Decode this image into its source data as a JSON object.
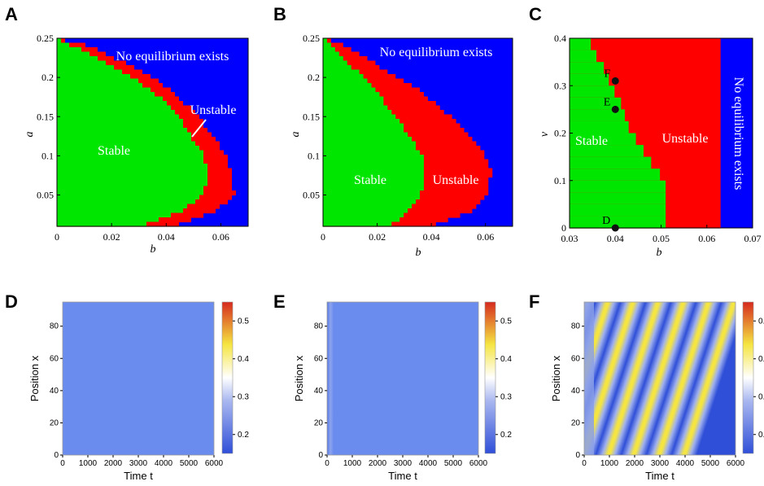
{
  "panels": [
    {
      "label": "A",
      "xlabel": "b",
      "ylabel": "a",
      "xticks": [
        "0",
        "0.02",
        "0.04",
        "0.06"
      ],
      "yticks": [
        "0.05",
        "0.1",
        "0.15",
        "0.2",
        "0.25"
      ],
      "regions": {
        "none": "No equilibrium exists",
        "unstable": "Unstable",
        "stable": "Stable"
      }
    },
    {
      "label": "B",
      "xlabel": "b",
      "ylabel": "a",
      "xticks": [
        "0",
        "0.02",
        "0.04",
        "0.06"
      ],
      "yticks": [
        "0.05",
        "0.1",
        "0.15",
        "0.2",
        "0.25"
      ],
      "regions": {
        "none": "No equilibrium exists",
        "unstable": "Unstable",
        "stable": "Stable"
      }
    },
    {
      "label": "C",
      "xlabel": "b",
      "ylabel": "v",
      "xticks": [
        "0.03",
        "0.04",
        "0.05",
        "0.06",
        "0.07"
      ],
      "yticks": [
        "0",
        "0.1",
        "0.2",
        "0.3",
        "0.4"
      ],
      "regions": {
        "none": "No equilibrium exists",
        "unstable": "Unstable",
        "stable": "Stable"
      },
      "points": [
        {
          "name": "F",
          "b": 0.04,
          "v": 0.31
        },
        {
          "name": "E",
          "b": 0.04,
          "v": 0.25
        },
        {
          "name": "D",
          "b": 0.04,
          "v": 0.0
        }
      ]
    },
    {
      "label": "D",
      "xlabel": "Time t",
      "ylabel": "Position x",
      "xticks": [
        "0",
        "1000",
        "2000",
        "3000",
        "4000",
        "5000",
        "6000"
      ],
      "yticks": [
        "0",
        "20",
        "40",
        "60",
        "80"
      ],
      "cbar": [
        "0.5",
        "0.4",
        "0.3",
        "0.2"
      ]
    },
    {
      "label": "E",
      "xlabel": "Time t",
      "ylabel": "Position x",
      "xticks": [
        "0",
        "1000",
        "2000",
        "3000",
        "4000",
        "5000",
        "6000"
      ],
      "yticks": [
        "0",
        "20",
        "40",
        "60",
        "80"
      ],
      "cbar": [
        "0.5",
        "0.4",
        "0.3",
        "0.2"
      ]
    },
    {
      "label": "F",
      "xlabel": "Time t",
      "ylabel": "Position x",
      "xticks": [
        "0",
        "1000",
        "2000",
        "3000",
        "4000",
        "5000",
        "6000"
      ],
      "yticks": [
        "0",
        "20",
        "40",
        "60",
        "80"
      ],
      "cbar": [
        "0.",
        "0.",
        "0.",
        "0."
      ]
    }
  ],
  "colors": {
    "stable": "#00e600",
    "unstable": "#ff0000",
    "none": "#0000ff",
    "uniform": "#6b8cef",
    "heat_low": "#2f4fd8",
    "heat_high": "#f5e542"
  },
  "chart_data": [
    {
      "type": "heatmap",
      "title": "",
      "xlabel": "b",
      "ylabel": "a",
      "xlim": [
        0,
        0.07
      ],
      "ylim": [
        0.01,
        0.25
      ],
      "categories": [
        "Stable",
        "Unstable",
        "No equilibrium exists"
      ],
      "boundaries": {
        "stable_max_b": [
          [
            0.01,
            0.031
          ],
          [
            0.03,
            0.046
          ],
          [
            0.05,
            0.054
          ],
          [
            0.08,
            0.055
          ],
          [
            0.1,
            0.054
          ],
          [
            0.12,
            0.05
          ],
          [
            0.15,
            0.045
          ],
          [
            0.18,
            0.036
          ],
          [
            0.2,
            0.028
          ],
          [
            0.22,
            0.017
          ],
          [
            0.24,
            0.006
          ],
          [
            0.25,
            0.0
          ]
        ],
        "unstable_max_b": [
          [
            0.01,
            0.043
          ],
          [
            0.03,
            0.058
          ],
          [
            0.05,
            0.065
          ],
          [
            0.08,
            0.064
          ],
          [
            0.1,
            0.062
          ],
          [
            0.12,
            0.058
          ],
          [
            0.15,
            0.052
          ],
          [
            0.18,
            0.043
          ],
          [
            0.2,
            0.035
          ],
          [
            0.22,
            0.024
          ],
          [
            0.24,
            0.012
          ],
          [
            0.25,
            0.0
          ]
        ]
      }
    },
    {
      "type": "heatmap",
      "title": "",
      "xlabel": "b",
      "ylabel": "a",
      "xlim": [
        0,
        0.07
      ],
      "ylim": [
        0.01,
        0.25
      ],
      "categories": [
        "Stable",
        "Unstable",
        "No equilibrium exists"
      ],
      "boundaries": {
        "stable_max_b": [
          [
            0.01,
            0.025
          ],
          [
            0.03,
            0.032
          ],
          [
            0.05,
            0.036
          ],
          [
            0.08,
            0.038
          ],
          [
            0.1,
            0.037
          ],
          [
            0.12,
            0.033
          ],
          [
            0.15,
            0.027
          ],
          [
            0.18,
            0.02
          ],
          [
            0.2,
            0.015
          ],
          [
            0.22,
            0.009
          ],
          [
            0.24,
            0.003
          ],
          [
            0.25,
            0.0
          ]
        ],
        "unstable_max_b": [
          [
            0.01,
            0.04
          ],
          [
            0.03,
            0.055
          ],
          [
            0.05,
            0.061
          ],
          [
            0.08,
            0.062
          ],
          [
            0.1,
            0.06
          ],
          [
            0.12,
            0.055
          ],
          [
            0.15,
            0.047
          ],
          [
            0.18,
            0.037
          ],
          [
            0.2,
            0.028
          ],
          [
            0.22,
            0.018
          ],
          [
            0.24,
            0.008
          ],
          [
            0.25,
            0.0
          ]
        ]
      }
    },
    {
      "type": "heatmap",
      "title": "",
      "xlabel": "b",
      "ylabel": "v",
      "xlim": [
        0.03,
        0.07
      ],
      "ylim": [
        0,
        0.4
      ],
      "categories": [
        "Stable",
        "Unstable",
        "No equilibrium exists"
      ],
      "boundaries": {
        "stable_max_b": [
          [
            0.0,
            0.051
          ],
          [
            0.1,
            0.051
          ],
          [
            0.12,
            0.049
          ],
          [
            0.15,
            0.047
          ],
          [
            0.18,
            0.045
          ],
          [
            0.21,
            0.043
          ],
          [
            0.24,
            0.042
          ],
          [
            0.27,
            0.041
          ],
          [
            0.3,
            0.039
          ],
          [
            0.33,
            0.038
          ],
          [
            0.36,
            0.036
          ],
          [
            0.38,
            0.035
          ],
          [
            0.4,
            0.034
          ]
        ],
        "unstable_max_b": [
          [
            0.0,
            0.063
          ],
          [
            0.4,
            0.063
          ]
        ]
      },
      "points": [
        {
          "name": "F",
          "x": 0.04,
          "y": 0.31
        },
        {
          "name": "E",
          "x": 0.04,
          "y": 0.25
        },
        {
          "name": "D",
          "x": 0.04,
          "y": 0.0
        }
      ]
    },
    {
      "type": "heatmap",
      "title": "",
      "xlabel": "Time t",
      "ylabel": "Position x",
      "xlim": [
        0,
        6000
      ],
      "ylim": [
        0,
        95
      ],
      "colorbar": [
        0.15,
        0.55
      ],
      "pattern": "uniform",
      "value": 0.25
    },
    {
      "type": "heatmap",
      "title": "",
      "xlabel": "Time t",
      "ylabel": "Position x",
      "xlim": [
        0,
        6000
      ],
      "ylim": [
        0,
        95
      ],
      "colorbar": [
        0.15,
        0.55
      ],
      "pattern": "uniform-transient",
      "value": 0.25
    },
    {
      "type": "heatmap",
      "title": "",
      "xlabel": "Time t",
      "ylabel": "Position x",
      "xlim": [
        0,
        6000
      ],
      "ylim": [
        0,
        95
      ],
      "colorbar": [
        0.15,
        0.55
      ],
      "pattern": "traveling-waves",
      "waves": 6
    }
  ]
}
